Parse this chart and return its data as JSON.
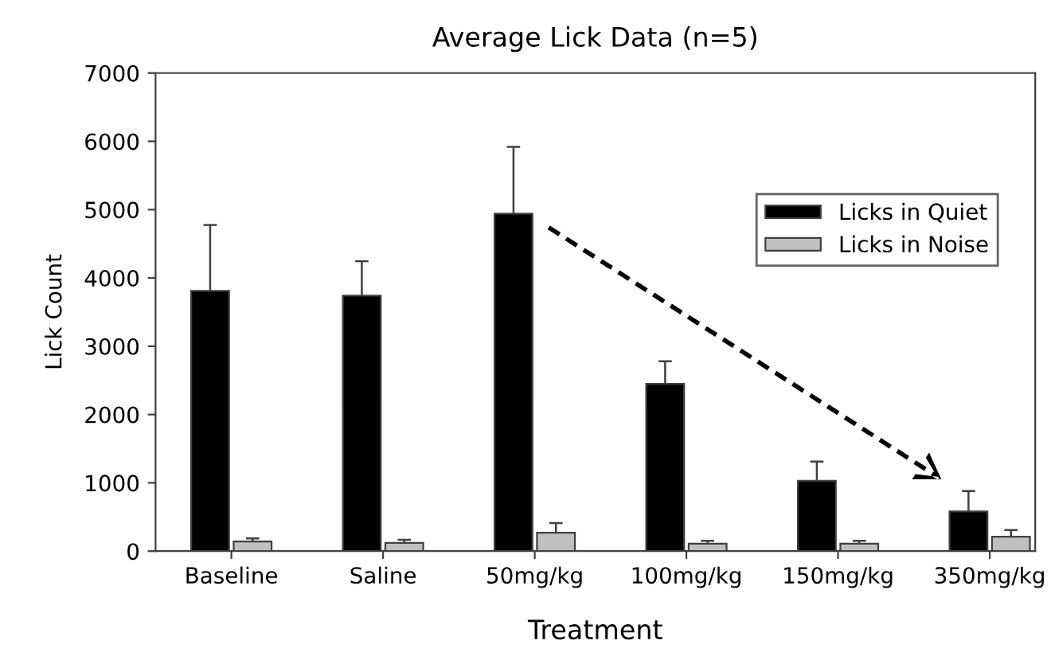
{
  "chart_data": {
    "type": "bar",
    "title": "Average Lick Data (n=5)",
    "xlabel": "Treatment",
    "ylabel": "Lick Count",
    "categories": [
      "Baseline",
      "Saline",
      "50mg/kg",
      "100mg/kg",
      "150mg/kg",
      "350mg/kg"
    ],
    "series": [
      {
        "name": "Licks in Quiet",
        "color": "#000000",
        "values": [
          3810,
          3740,
          4940,
          2450,
          1030,
          580
        ],
        "errors": [
          965,
          505,
          980,
          330,
          280,
          300
        ]
      },
      {
        "name": "Licks in Noise",
        "color": "#c0c0c0",
        "values": [
          140,
          120,
          270,
          110,
          110,
          210
        ],
        "errors": [
          45,
          45,
          140,
          40,
          40,
          100
        ]
      }
    ],
    "ylim": [
      0,
      7000
    ],
    "yticks": [
      0,
      1000,
      2000,
      3000,
      4000,
      5000,
      6000,
      7000
    ],
    "grid": false,
    "legend": "top right"
  }
}
